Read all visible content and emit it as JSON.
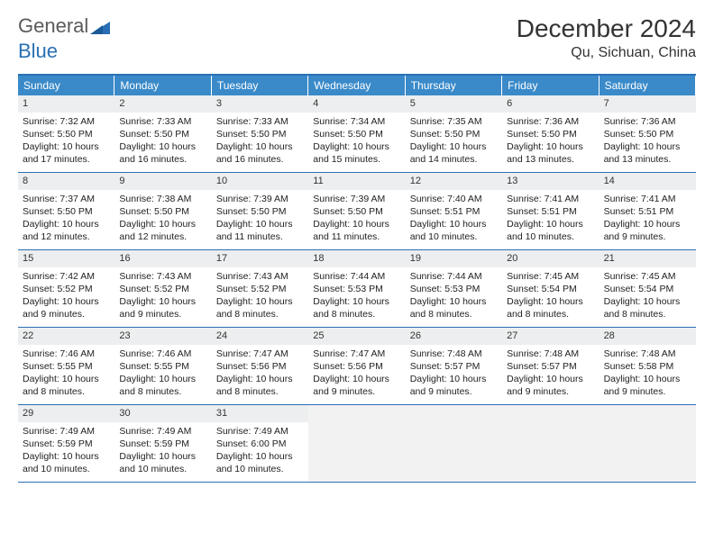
{
  "logo": {
    "text1": "General",
    "text2": "Blue"
  },
  "title": "December 2024",
  "location": "Qu, Sichuan, China",
  "colors": {
    "header_bg": "#3a8ac9",
    "border": "#2a6fb5",
    "daynum_bg": "#eceeef",
    "empty_bg": "#f2f2f2",
    "text": "#333333",
    "logo_gray": "#5a5a5a",
    "logo_blue": "#2a6fb5"
  },
  "weekdays": [
    "Sunday",
    "Monday",
    "Tuesday",
    "Wednesday",
    "Thursday",
    "Friday",
    "Saturday"
  ],
  "cells": [
    {
      "day": "1",
      "sunrise": "Sunrise: 7:32 AM",
      "sunset": "Sunset: 5:50 PM",
      "daylight1": "Daylight: 10 hours",
      "daylight2": "and 17 minutes."
    },
    {
      "day": "2",
      "sunrise": "Sunrise: 7:33 AM",
      "sunset": "Sunset: 5:50 PM",
      "daylight1": "Daylight: 10 hours",
      "daylight2": "and 16 minutes."
    },
    {
      "day": "3",
      "sunrise": "Sunrise: 7:33 AM",
      "sunset": "Sunset: 5:50 PM",
      "daylight1": "Daylight: 10 hours",
      "daylight2": "and 16 minutes."
    },
    {
      "day": "4",
      "sunrise": "Sunrise: 7:34 AM",
      "sunset": "Sunset: 5:50 PM",
      "daylight1": "Daylight: 10 hours",
      "daylight2": "and 15 minutes."
    },
    {
      "day": "5",
      "sunrise": "Sunrise: 7:35 AM",
      "sunset": "Sunset: 5:50 PM",
      "daylight1": "Daylight: 10 hours",
      "daylight2": "and 14 minutes."
    },
    {
      "day": "6",
      "sunrise": "Sunrise: 7:36 AM",
      "sunset": "Sunset: 5:50 PM",
      "daylight1": "Daylight: 10 hours",
      "daylight2": "and 13 minutes."
    },
    {
      "day": "7",
      "sunrise": "Sunrise: 7:36 AM",
      "sunset": "Sunset: 5:50 PM",
      "daylight1": "Daylight: 10 hours",
      "daylight2": "and 13 minutes."
    },
    {
      "day": "8",
      "sunrise": "Sunrise: 7:37 AM",
      "sunset": "Sunset: 5:50 PM",
      "daylight1": "Daylight: 10 hours",
      "daylight2": "and 12 minutes."
    },
    {
      "day": "9",
      "sunrise": "Sunrise: 7:38 AM",
      "sunset": "Sunset: 5:50 PM",
      "daylight1": "Daylight: 10 hours",
      "daylight2": "and 12 minutes."
    },
    {
      "day": "10",
      "sunrise": "Sunrise: 7:39 AM",
      "sunset": "Sunset: 5:50 PM",
      "daylight1": "Daylight: 10 hours",
      "daylight2": "and 11 minutes."
    },
    {
      "day": "11",
      "sunrise": "Sunrise: 7:39 AM",
      "sunset": "Sunset: 5:50 PM",
      "daylight1": "Daylight: 10 hours",
      "daylight2": "and 11 minutes."
    },
    {
      "day": "12",
      "sunrise": "Sunrise: 7:40 AM",
      "sunset": "Sunset: 5:51 PM",
      "daylight1": "Daylight: 10 hours",
      "daylight2": "and 10 minutes."
    },
    {
      "day": "13",
      "sunrise": "Sunrise: 7:41 AM",
      "sunset": "Sunset: 5:51 PM",
      "daylight1": "Daylight: 10 hours",
      "daylight2": "and 10 minutes."
    },
    {
      "day": "14",
      "sunrise": "Sunrise: 7:41 AM",
      "sunset": "Sunset: 5:51 PM",
      "daylight1": "Daylight: 10 hours",
      "daylight2": "and 9 minutes."
    },
    {
      "day": "15",
      "sunrise": "Sunrise: 7:42 AM",
      "sunset": "Sunset: 5:52 PM",
      "daylight1": "Daylight: 10 hours",
      "daylight2": "and 9 minutes."
    },
    {
      "day": "16",
      "sunrise": "Sunrise: 7:43 AM",
      "sunset": "Sunset: 5:52 PM",
      "daylight1": "Daylight: 10 hours",
      "daylight2": "and 9 minutes."
    },
    {
      "day": "17",
      "sunrise": "Sunrise: 7:43 AM",
      "sunset": "Sunset: 5:52 PM",
      "daylight1": "Daylight: 10 hours",
      "daylight2": "and 8 minutes."
    },
    {
      "day": "18",
      "sunrise": "Sunrise: 7:44 AM",
      "sunset": "Sunset: 5:53 PM",
      "daylight1": "Daylight: 10 hours",
      "daylight2": "and 8 minutes."
    },
    {
      "day": "19",
      "sunrise": "Sunrise: 7:44 AM",
      "sunset": "Sunset: 5:53 PM",
      "daylight1": "Daylight: 10 hours",
      "daylight2": "and 8 minutes."
    },
    {
      "day": "20",
      "sunrise": "Sunrise: 7:45 AM",
      "sunset": "Sunset: 5:54 PM",
      "daylight1": "Daylight: 10 hours",
      "daylight2": "and 8 minutes."
    },
    {
      "day": "21",
      "sunrise": "Sunrise: 7:45 AM",
      "sunset": "Sunset: 5:54 PM",
      "daylight1": "Daylight: 10 hours",
      "daylight2": "and 8 minutes."
    },
    {
      "day": "22",
      "sunrise": "Sunrise: 7:46 AM",
      "sunset": "Sunset: 5:55 PM",
      "daylight1": "Daylight: 10 hours",
      "daylight2": "and 8 minutes."
    },
    {
      "day": "23",
      "sunrise": "Sunrise: 7:46 AM",
      "sunset": "Sunset: 5:55 PM",
      "daylight1": "Daylight: 10 hours",
      "daylight2": "and 8 minutes."
    },
    {
      "day": "24",
      "sunrise": "Sunrise: 7:47 AM",
      "sunset": "Sunset: 5:56 PM",
      "daylight1": "Daylight: 10 hours",
      "daylight2": "and 8 minutes."
    },
    {
      "day": "25",
      "sunrise": "Sunrise: 7:47 AM",
      "sunset": "Sunset: 5:56 PM",
      "daylight1": "Daylight: 10 hours",
      "daylight2": "and 9 minutes."
    },
    {
      "day": "26",
      "sunrise": "Sunrise: 7:48 AM",
      "sunset": "Sunset: 5:57 PM",
      "daylight1": "Daylight: 10 hours",
      "daylight2": "and 9 minutes."
    },
    {
      "day": "27",
      "sunrise": "Sunrise: 7:48 AM",
      "sunset": "Sunset: 5:57 PM",
      "daylight1": "Daylight: 10 hours",
      "daylight2": "and 9 minutes."
    },
    {
      "day": "28",
      "sunrise": "Sunrise: 7:48 AM",
      "sunset": "Sunset: 5:58 PM",
      "daylight1": "Daylight: 10 hours",
      "daylight2": "and 9 minutes."
    },
    {
      "day": "29",
      "sunrise": "Sunrise: 7:49 AM",
      "sunset": "Sunset: 5:59 PM",
      "daylight1": "Daylight: 10 hours",
      "daylight2": "and 10 minutes."
    },
    {
      "day": "30",
      "sunrise": "Sunrise: 7:49 AM",
      "sunset": "Sunset: 5:59 PM",
      "daylight1": "Daylight: 10 hours",
      "daylight2": "and 10 minutes."
    },
    {
      "day": "31",
      "sunrise": "Sunrise: 7:49 AM",
      "sunset": "Sunset: 6:00 PM",
      "daylight1": "Daylight: 10 hours",
      "daylight2": "and 10 minutes."
    }
  ]
}
